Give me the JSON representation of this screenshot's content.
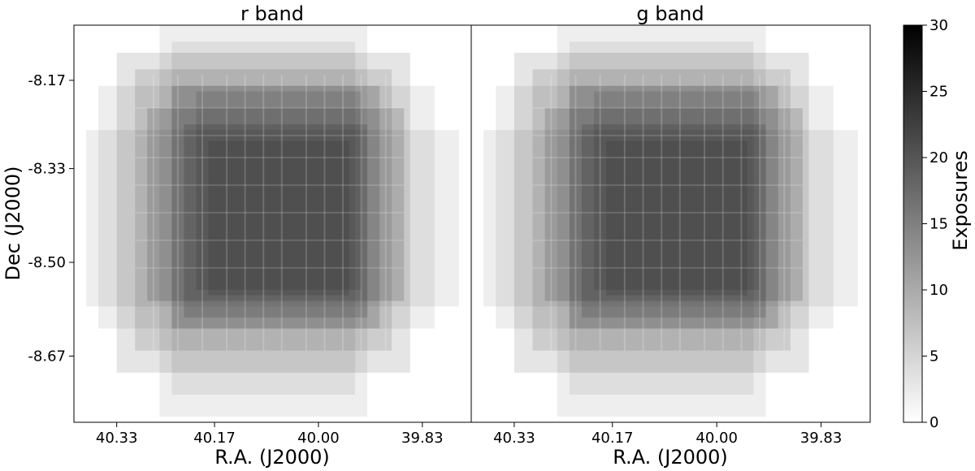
{
  "chart_data": {
    "type": "heatmap",
    "xlabel": "R.A. (J2000)",
    "ylabel": "Dec (J2000)",
    "x_ticks": [
      40.33,
      40.17,
      40.0,
      39.83
    ],
    "x_tick_labels": [
      "40.33",
      "40.17",
      "40.00",
      "39.83"
    ],
    "y_ticks": [
      -8.17,
      -8.33,
      -8.5,
      -8.67
    ],
    "y_tick_labels": [
      "-8.17",
      "-8.33",
      "-8.50",
      "-8.67"
    ],
    "xlim": [
      40.4,
      39.75
    ],
    "ylim": [
      -8.79,
      -8.07
    ],
    "x_axis_reversed": true,
    "panels": [
      {
        "title": "r band"
      },
      {
        "title": "g band"
      }
    ],
    "colorbar": {
      "label": "Exposures",
      "range": [
        0,
        30
      ],
      "ticks": [
        0,
        5,
        10,
        15,
        20,
        25,
        30
      ],
      "tick_labels": [
        "0",
        "5",
        "10",
        "15",
        "20",
        "25",
        "30"
      ],
      "colormap": "white-to-black (gray_r)",
      "low_color": "#ffffff",
      "high_color": "#000000"
    },
    "exposure_layers": [
      {
        "ra_min": 39.92,
        "ra_max": 40.26,
        "dec_min": -8.78,
        "dec_max": -8.07,
        "count": 2
      },
      {
        "ra_min": 39.81,
        "ra_max": 40.36,
        "dec_min": -8.62,
        "dec_max": -8.18,
        "count": 2
      },
      {
        "ra_min": 39.77,
        "ra_max": 40.38,
        "dec_min": -8.58,
        "dec_max": -8.26,
        "count": 2
      },
      {
        "ra_min": 39.85,
        "ra_max": 40.33,
        "dec_min": -8.7,
        "dec_max": -8.12,
        "count": 3
      },
      {
        "ra_min": 39.88,
        "ra_max": 40.3,
        "dec_min": -8.66,
        "dec_max": -8.15,
        "count": 3
      },
      {
        "ra_min": 39.94,
        "ra_max": 40.24,
        "dec_min": -8.74,
        "dec_max": -8.1,
        "count": 2
      },
      {
        "ra_min": 39.86,
        "ra_max": 40.28,
        "dec_min": -8.57,
        "dec_max": -8.22,
        "count": 4
      },
      {
        "ra_min": 39.9,
        "ra_max": 40.24,
        "dec_min": -8.62,
        "dec_max": -8.18,
        "count": 4
      },
      {
        "ra_min": 39.92,
        "ra_max": 40.22,
        "dec_min": -8.6,
        "dec_max": -8.25,
        "count": 4
      },
      {
        "ra_min": 39.93,
        "ra_max": 40.2,
        "dec_min": -8.55,
        "dec_max": -8.19,
        "count": 3
      },
      {
        "ra_min": 39.95,
        "ra_max": 40.18,
        "dec_min": -8.56,
        "dec_max": -8.28,
        "count": 3
      }
    ],
    "stripe_ra": [
      40.27,
      40.23,
      40.19,
      40.15,
      40.12,
      40.09,
      40.06,
      40.02,
      39.99,
      39.96,
      39.93,
      39.89
    ],
    "stripe_dec": [
      -8.22,
      -8.27,
      -8.31,
      -8.36,
      -8.41,
      -8.46,
      -8.51
    ]
  }
}
